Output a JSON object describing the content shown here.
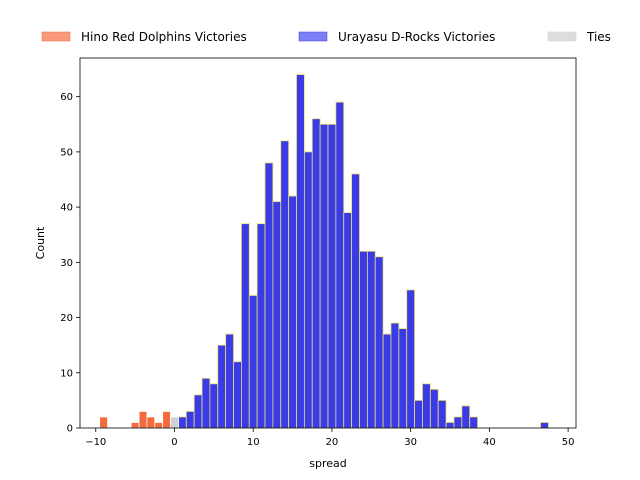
{
  "chart_data": {
    "type": "bar",
    "xlabel": "spread",
    "ylabel": "Count",
    "xlim": [
      -12,
      51
    ],
    "ylim": [
      0,
      67
    ],
    "x_ticks": [
      -10,
      0,
      10,
      20,
      30,
      40,
      50
    ],
    "y_ticks": [
      0,
      10,
      20,
      30,
      40,
      50,
      60
    ],
    "legend_position": "top (above plot, horizontal)",
    "series": [
      {
        "name": "Hino Red Dolphins Victories",
        "color": "#f36a3d",
        "legend_color": "#fa9a7c",
        "points": [
          {
            "x": -9,
            "y": 2
          },
          {
            "x": -5,
            "y": 1
          },
          {
            "x": -4,
            "y": 3
          },
          {
            "x": -3,
            "y": 2
          },
          {
            "x": -2,
            "y": 1
          },
          {
            "x": -1,
            "y": 3
          }
        ]
      },
      {
        "name": "Urayasu D-Rocks Victories",
        "color": "#3a3ae6",
        "legend_color": "#7f7ff5",
        "points": [
          {
            "x": 1,
            "y": 2
          },
          {
            "x": 2,
            "y": 3
          },
          {
            "x": 3,
            "y": 6
          },
          {
            "x": 4,
            "y": 9
          },
          {
            "x": 5,
            "y": 8
          },
          {
            "x": 6,
            "y": 15
          },
          {
            "x": 7,
            "y": 17
          },
          {
            "x": 8,
            "y": 12
          },
          {
            "x": 9,
            "y": 37
          },
          {
            "x": 10,
            "y": 24
          },
          {
            "x": 11,
            "y": 37
          },
          {
            "x": 12,
            "y": 48
          },
          {
            "x": 13,
            "y": 41
          },
          {
            "x": 14,
            "y": 52
          },
          {
            "x": 15,
            "y": 42
          },
          {
            "x": 16,
            "y": 64
          },
          {
            "x": 17,
            "y": 50
          },
          {
            "x": 18,
            "y": 56
          },
          {
            "x": 19,
            "y": 55
          },
          {
            "x": 20,
            "y": 55
          },
          {
            "x": 21,
            "y": 59
          },
          {
            "x": 22,
            "y": 39
          },
          {
            "x": 23,
            "y": 46
          },
          {
            "x": 24,
            "y": 32
          },
          {
            "x": 25,
            "y": 32
          },
          {
            "x": 26,
            "y": 31
          },
          {
            "x": 27,
            "y": 17
          },
          {
            "x": 28,
            "y": 19
          },
          {
            "x": 29,
            "y": 18
          },
          {
            "x": 30,
            "y": 25
          },
          {
            "x": 31,
            "y": 5
          },
          {
            "x": 32,
            "y": 8
          },
          {
            "x": 33,
            "y": 7
          },
          {
            "x": 34,
            "y": 5
          },
          {
            "x": 35,
            "y": 1
          },
          {
            "x": 36,
            "y": 2
          },
          {
            "x": 37,
            "y": 4
          },
          {
            "x": 38,
            "y": 2
          },
          {
            "x": 47,
            "y": 1
          }
        ]
      },
      {
        "name": "Ties",
        "color": "#d0d0d0",
        "legend_color": "#dddddd",
        "points": [
          {
            "x": 0,
            "y": 2
          }
        ]
      }
    ]
  }
}
